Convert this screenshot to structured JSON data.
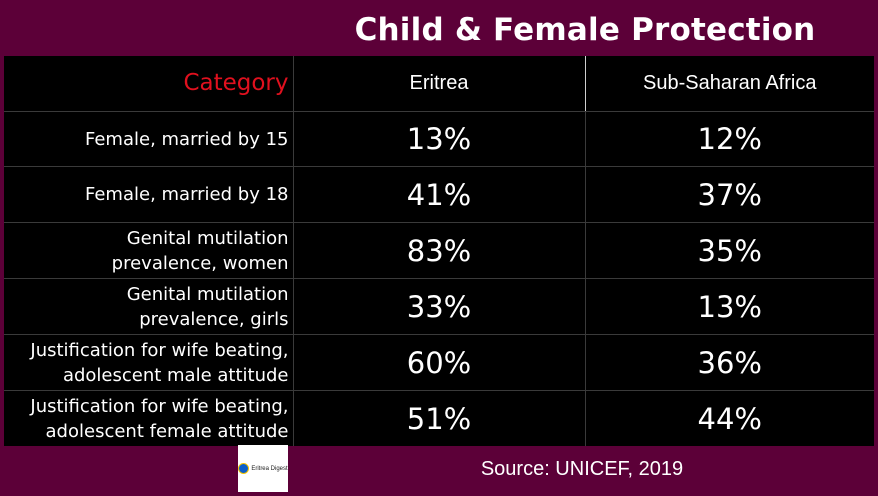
{
  "title": "Child & Female Protection",
  "table": {
    "headers": {
      "category": "Category",
      "col1": "Eritrea",
      "col2": "Sub-Saharan Africa"
    },
    "rows": [
      {
        "label_lines": [
          "Female, married by 15"
        ],
        "eritrea": "13%",
        "ssa": "12%"
      },
      {
        "label_lines": [
          "Female, married by 18"
        ],
        "eritrea": "41%",
        "ssa": "37%"
      },
      {
        "label_lines": [
          "Genital mutilation",
          "prevalence, women"
        ],
        "eritrea": "83%",
        "ssa": "35%"
      },
      {
        "label_lines": [
          "Genital mutilation",
          "prevalence, girls"
        ],
        "eritrea": "33%",
        "ssa": "13%"
      },
      {
        "label_lines": [
          "Justification for wife beating,",
          "adolescent male attitude"
        ],
        "eritrea": "60%",
        "ssa": "36%"
      },
      {
        "label_lines": [
          "Justification for wife beating,",
          "adolescent female attitude"
        ],
        "eritrea": "51%",
        "ssa": "44%"
      }
    ]
  },
  "footer": {
    "logo_text": "Eritrea Digest",
    "source": "Source: UNICEF, 2019"
  },
  "colors": {
    "background": "#5c0038",
    "table_bg": "#000000",
    "category_header": "#e0101e",
    "text": "#ffffff"
  }
}
